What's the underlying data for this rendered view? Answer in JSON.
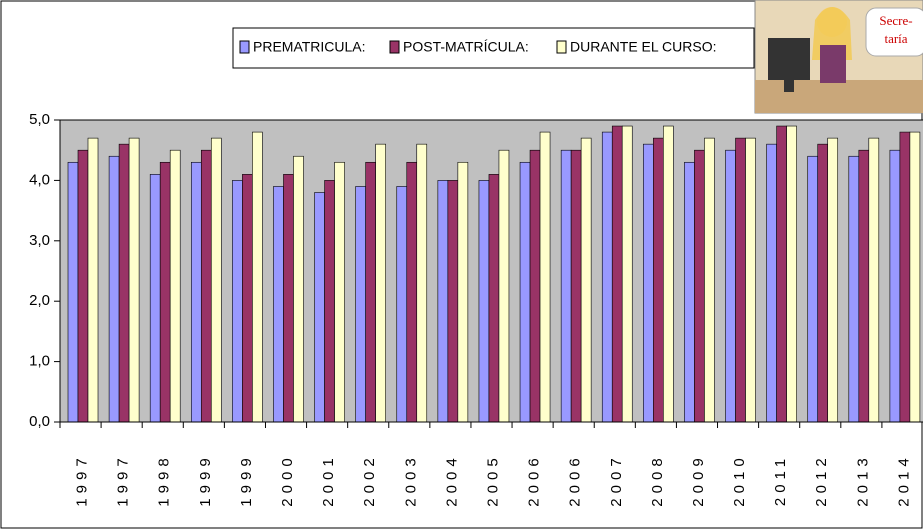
{
  "chart_data": {
    "type": "bar",
    "categories": [
      "1997",
      "1997",
      "1998",
      "1999",
      "1999",
      "2000",
      "2001",
      "2002",
      "2003",
      "2004",
      "2005",
      "2006",
      "2006",
      "2007",
      "2008",
      "2009",
      "2010",
      "2011",
      "2012",
      "2013",
      "2014"
    ],
    "series": [
      {
        "name": "PREMATRICULA:",
        "color": "#9999ff",
        "values": [
          4.3,
          4.4,
          4.1,
          4.3,
          4.0,
          3.9,
          3.8,
          3.9,
          3.9,
          4.0,
          4.0,
          4.3,
          4.5,
          4.8,
          4.6,
          4.3,
          4.5,
          4.6,
          4.4,
          4.4,
          4.5
        ]
      },
      {
        "name": "POST-MATRÍCULA:",
        "color": "#993366",
        "values": [
          4.5,
          4.6,
          4.3,
          4.5,
          4.1,
          4.1,
          4.0,
          4.3,
          4.3,
          4.0,
          4.1,
          4.5,
          4.5,
          4.9,
          4.7,
          4.5,
          4.7,
          4.9,
          4.6,
          4.5,
          4.8
        ]
      },
      {
        "name": "DURANTE EL CURSO:",
        "color": "#ffffcc",
        "values": [
          4.7,
          4.7,
          4.5,
          4.7,
          4.8,
          4.4,
          4.3,
          4.6,
          4.6,
          4.3,
          4.5,
          4.8,
          4.7,
          4.9,
          4.9,
          4.7,
          4.7,
          4.9,
          4.7,
          4.7,
          4.8
        ]
      }
    ],
    "ylim": [
      0,
      5
    ],
    "yticks": [
      {
        "value": 0,
        "label": "0,0"
      },
      {
        "value": 1,
        "label": "1,0"
      },
      {
        "value": 2,
        "label": "2,0"
      },
      {
        "value": 3,
        "label": "3,0"
      },
      {
        "value": 4,
        "label": "4,0"
      },
      {
        "value": 5,
        "label": "5,0"
      }
    ],
    "plot_background": "#c0c0c0"
  },
  "corner_image": {
    "caption": [
      "Secre-",
      "taría"
    ]
  }
}
